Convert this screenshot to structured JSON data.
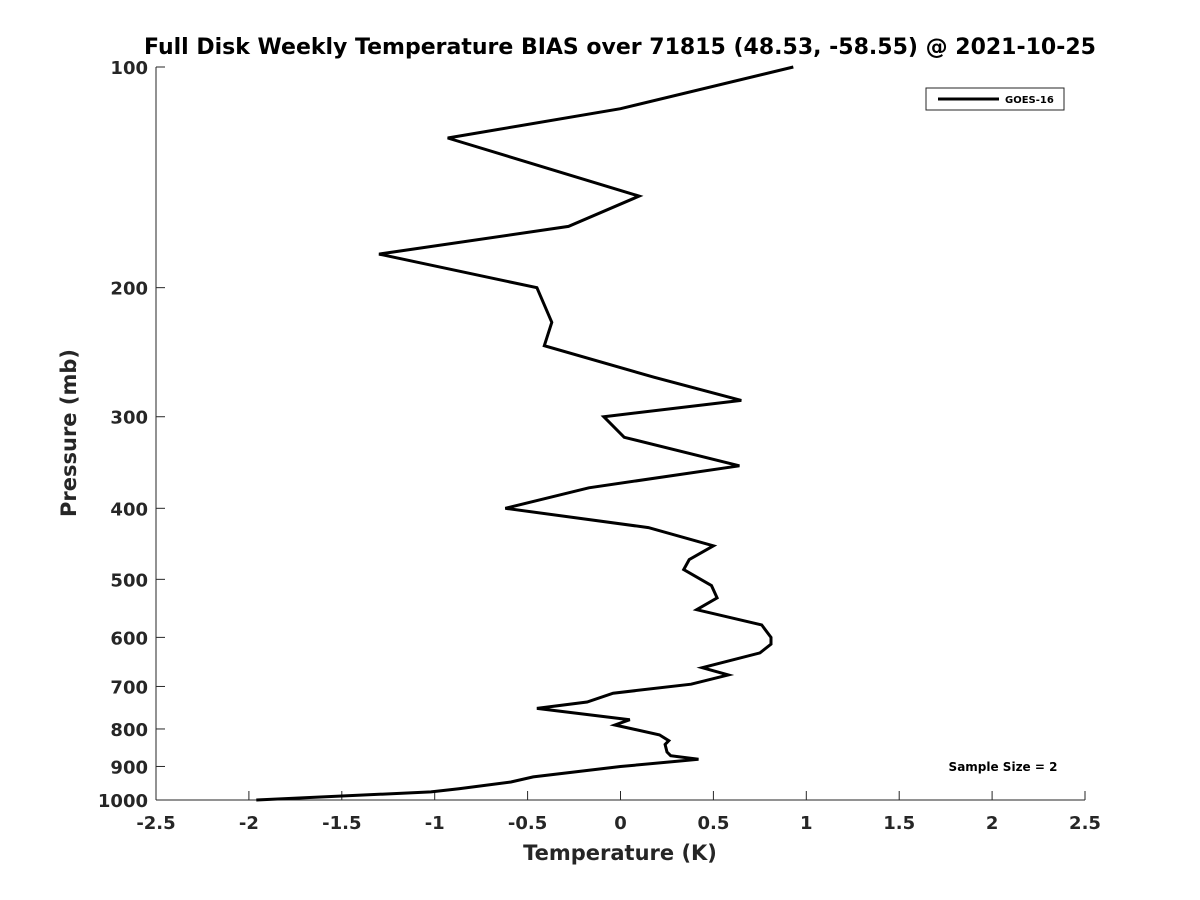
{
  "chart_data": {
    "type": "line",
    "title": "Full Disk Weekly Temperature BIAS over 71815 (48.53, -58.55) @ 2021-10-25",
    "xlabel": "Temperature (K)",
    "ylabel": "Pressure (mb)",
    "xlim": [
      -2.5,
      2.5
    ],
    "ylim": [
      100,
      1000
    ],
    "yscale": "log",
    "y_reversed": true,
    "grid": false,
    "legend_position": "top-right",
    "x_ticks": [
      "-2.5",
      "-2",
      "-1.5",
      "-1",
      "-0.5",
      "0",
      "0.5",
      "1",
      "1.5",
      "2",
      "2.5"
    ],
    "x_tick_values": [
      -2.5,
      -2,
      -1.5,
      -1,
      -0.5,
      0,
      0.5,
      1,
      1.5,
      2,
      2.5
    ],
    "y_ticks": [
      "100",
      "200",
      "300",
      "400",
      "500",
      "600",
      "700",
      "800",
      "900",
      "1000"
    ],
    "y_tick_values": [
      100,
      200,
      300,
      400,
      500,
      600,
      700,
      800,
      900,
      1000
    ],
    "series": [
      {
        "name": "GOES-16",
        "color": "#000000",
        "points": [
          [
            0.93,
            100
          ],
          [
            0.0,
            114
          ],
          [
            -0.93,
            125
          ],
          [
            0.1,
            150
          ],
          [
            -0.28,
            165
          ],
          [
            -1.3,
            180
          ],
          [
            -0.45,
            200
          ],
          [
            -0.37,
            223
          ],
          [
            -0.41,
            240
          ],
          [
            0.18,
            265
          ],
          [
            0.65,
            285
          ],
          [
            -0.09,
            300
          ],
          [
            0.02,
            320
          ],
          [
            0.64,
            350
          ],
          [
            -0.17,
            375
          ],
          [
            -0.62,
            400
          ],
          [
            0.15,
            425
          ],
          [
            0.5,
            450
          ],
          [
            0.37,
            470
          ],
          [
            0.34,
            485
          ],
          [
            0.49,
            510
          ],
          [
            0.52,
            530
          ],
          [
            0.41,
            550
          ],
          [
            0.76,
            577
          ],
          [
            0.81,
            600
          ],
          [
            0.81,
            613
          ],
          [
            0.75,
            630
          ],
          [
            0.44,
            660
          ],
          [
            0.58,
            675
          ],
          [
            0.38,
            695
          ],
          [
            -0.04,
            715
          ],
          [
            -0.18,
            735
          ],
          [
            -0.45,
            750
          ],
          [
            0.05,
            777
          ],
          [
            -0.03,
            790
          ],
          [
            0.21,
            815
          ],
          [
            0.26,
            830
          ],
          [
            0.24,
            840
          ],
          [
            0.25,
            860
          ],
          [
            0.27,
            870
          ],
          [
            0.42,
            880
          ],
          [
            0.0,
            900
          ],
          [
            -0.47,
            930
          ],
          [
            -0.59,
            945
          ],
          [
            -0.87,
            965
          ],
          [
            -1.02,
            975
          ],
          [
            -1.96,
            1000
          ]
        ]
      }
    ],
    "annotations": [
      "Sample Size = 2"
    ]
  }
}
